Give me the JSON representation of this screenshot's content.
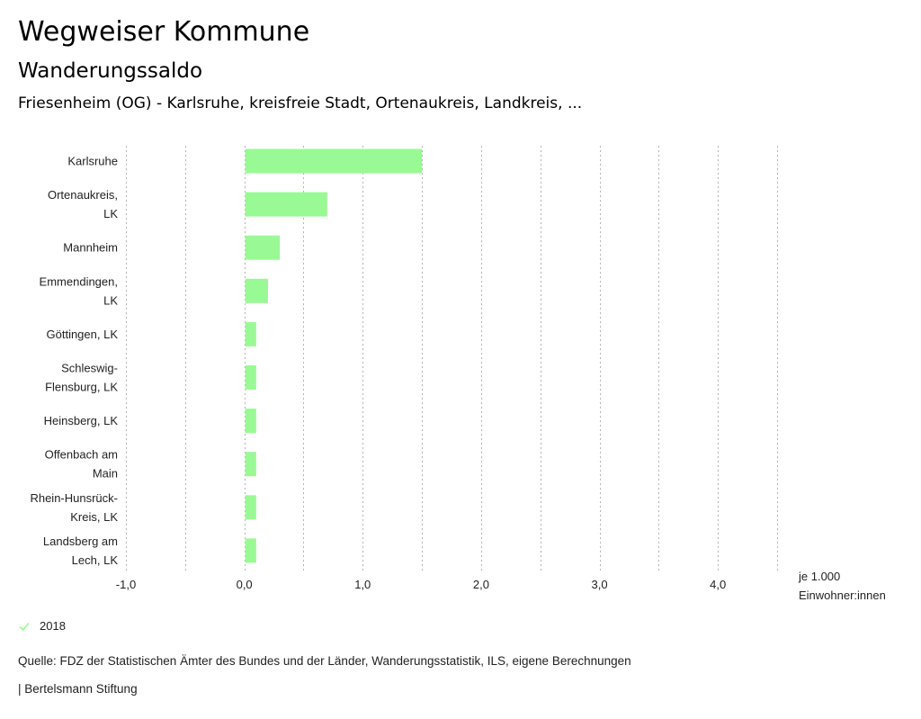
{
  "header": {
    "title": "Wegweiser Kommune",
    "subtitle": "Wanderungssaldo",
    "region": "Friesenheim (OG) - Karlsruhe, kreisfreie Stadt, Ortenaukreis, Landkreis, ..."
  },
  "chart_data": {
    "type": "bar",
    "orientation": "horizontal",
    "title": "Wanderungssaldo",
    "categories": [
      [
        "Karlsruhe"
      ],
      [
        "Ortenaukreis,",
        "LK"
      ],
      [
        "Mannheim"
      ],
      [
        "Emmendingen,",
        "LK"
      ],
      [
        "Göttingen, LK"
      ],
      [
        "Schleswig-",
        "Flensburg, LK"
      ],
      [
        "Heinsberg, LK"
      ],
      [
        "Offenbach am",
        "Main"
      ],
      [
        "Rhein-Hunsrück-",
        "Kreis, LK"
      ],
      [
        "Landsberg am",
        "Lech, LK"
      ]
    ],
    "series": [
      {
        "name": "2018",
        "color": "#99f994",
        "values": [
          1.5,
          0.7,
          0.3,
          0.2,
          0.1,
          0.1,
          0.1,
          0.1,
          0.1,
          0.1
        ]
      }
    ],
    "xlim": [
      -1.0,
      4.5
    ],
    "xticks": [
      -1.0,
      0.0,
      1.0,
      2.0,
      3.0,
      4.0
    ],
    "xtick_labels": [
      "-1,0",
      "0,0",
      "1,0",
      "2,0",
      "3,0",
      "4,0"
    ],
    "gridlines": [
      -1.0,
      -0.5,
      0.0,
      0.5,
      1.0,
      1.5,
      2.0,
      2.5,
      3.0,
      3.5,
      4.0,
      4.5
    ],
    "grid": true,
    "xlabel": [
      "je 1.000",
      "Einwohner:innen"
    ],
    "legend_position": "bottom-left"
  },
  "legend": {
    "label": "2018",
    "icon": "check-icon",
    "color": "#99f994"
  },
  "footer": {
    "source": "Quelle: FDZ der Statistischen Ämter des Bundes und der Länder, Wanderungsstatistik, ILS, eigene Berechnungen",
    "brand": "| Bertelsmann Stiftung"
  }
}
